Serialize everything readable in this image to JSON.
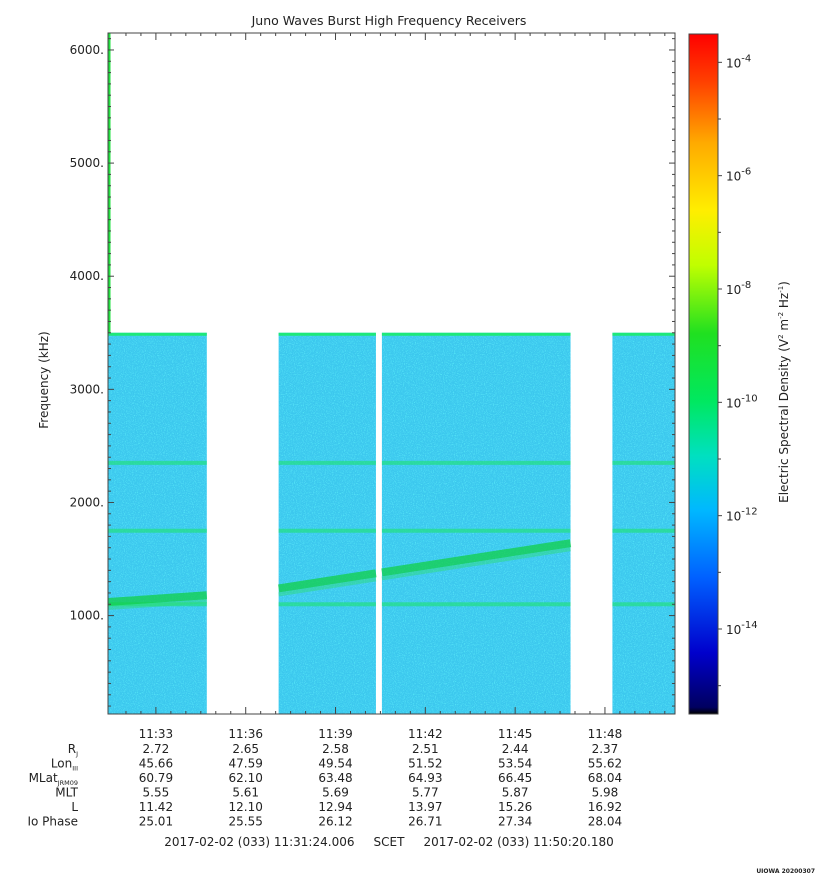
{
  "chart_data": {
    "type": "heatmap",
    "title": "Juno Waves Burst High Frequency Receivers",
    "ylabel": "Frequency (kHz)",
    "ylim": [
      130,
      6150
    ],
    "yticks": [
      1000,
      2000,
      3000,
      4000,
      5000,
      6000
    ],
    "ytick_labels": [
      "1000.",
      "2000.",
      "3000.",
      "4000.",
      "5000.",
      "6000."
    ],
    "xlim_minutes": [
      691.4,
      710.34
    ],
    "xticks_minutes": [
      693,
      696,
      699,
      702,
      705,
      708
    ],
    "xtick_labels": [
      "11:33",
      "11:36",
      "11:39",
      "11:42",
      "11:45",
      "11:48"
    ],
    "data_upper_frequency_khz": 3500,
    "data_segments_minutes": [
      [
        691.4,
        694.7
      ],
      [
        697.1,
        700.35
      ],
      [
        700.55,
        706.85
      ],
      [
        708.25,
        710.34
      ]
    ],
    "low_freq_narrow_band_khz": 6150,
    "emission_lines": [
      {
        "freq_khz": 1750
      },
      {
        "freq_khz": 2350
      },
      {
        "freq_khz": 1100
      },
      {
        "x_start_min": 691.4,
        "y_start_khz": 1120,
        "x_end_min": 694.7,
        "y_end_khz": 1180
      },
      {
        "x_start_min": 697.1,
        "y_start_khz": 1240,
        "x_end_min": 706.85,
        "y_end_khz": 1640
      }
    ],
    "colorbar": {
      "label": "Electric Spectral Density (V^2 m^-2 Hz^-1)",
      "label_main": "Electric Spectral Density (V",
      "label_sup1": "2",
      "label_mid": " m",
      "label_sup2": "-2",
      "label_mid2": " Hz",
      "label_sup3": "-1",
      "label_end": ")",
      "log_range": [
        -15.5,
        -3.5
      ],
      "ticks": [
        {
          "base": "10",
          "exp": "-4",
          "log": -4
        },
        {
          "base": "10",
          "exp": "-6",
          "log": -6
        },
        {
          "base": "10",
          "exp": "-8",
          "log": -8
        },
        {
          "base": "10",
          "exp": "-10",
          "log": -10
        },
        {
          "base": "10",
          "exp": "-12",
          "log": -12
        },
        {
          "base": "10",
          "exp": "-14",
          "log": -14
        }
      ]
    },
    "ephemeris": {
      "rows": [
        {
          "label": "R",
          "sub": "J",
          "values": [
            "2.72",
            "2.65",
            "2.58",
            "2.51",
            "2.44",
            "2.37"
          ]
        },
        {
          "label": "Lon",
          "sub": "III",
          "values": [
            "45.66",
            "47.59",
            "49.54",
            "51.52",
            "53.54",
            "55.62"
          ]
        },
        {
          "label": "MLat",
          "sub": "JRM09",
          "values": [
            "60.79",
            "62.10",
            "63.48",
            "64.93",
            "66.45",
            "68.04"
          ]
        },
        {
          "label": "MLT",
          "sub": "",
          "values": [
            "5.55",
            "5.61",
            "5.69",
            "5.77",
            "5.87",
            "5.98"
          ]
        },
        {
          "label": "L",
          "sub": "",
          "values": [
            "11.42",
            "12.10",
            "12.94",
            "13.97",
            "15.26",
            "16.92"
          ]
        },
        {
          "label": "Io Phase",
          "sub": "",
          "values": [
            "25.01",
            "25.55",
            "26.12",
            "26.71",
            "27.34",
            "28.04"
          ]
        }
      ]
    },
    "time_range": "2017-02-02 (033) 11:31:24.006     SCET     2017-02-02 (033) 11:50:20.180",
    "footer_note": "UIOWA 20200307"
  }
}
